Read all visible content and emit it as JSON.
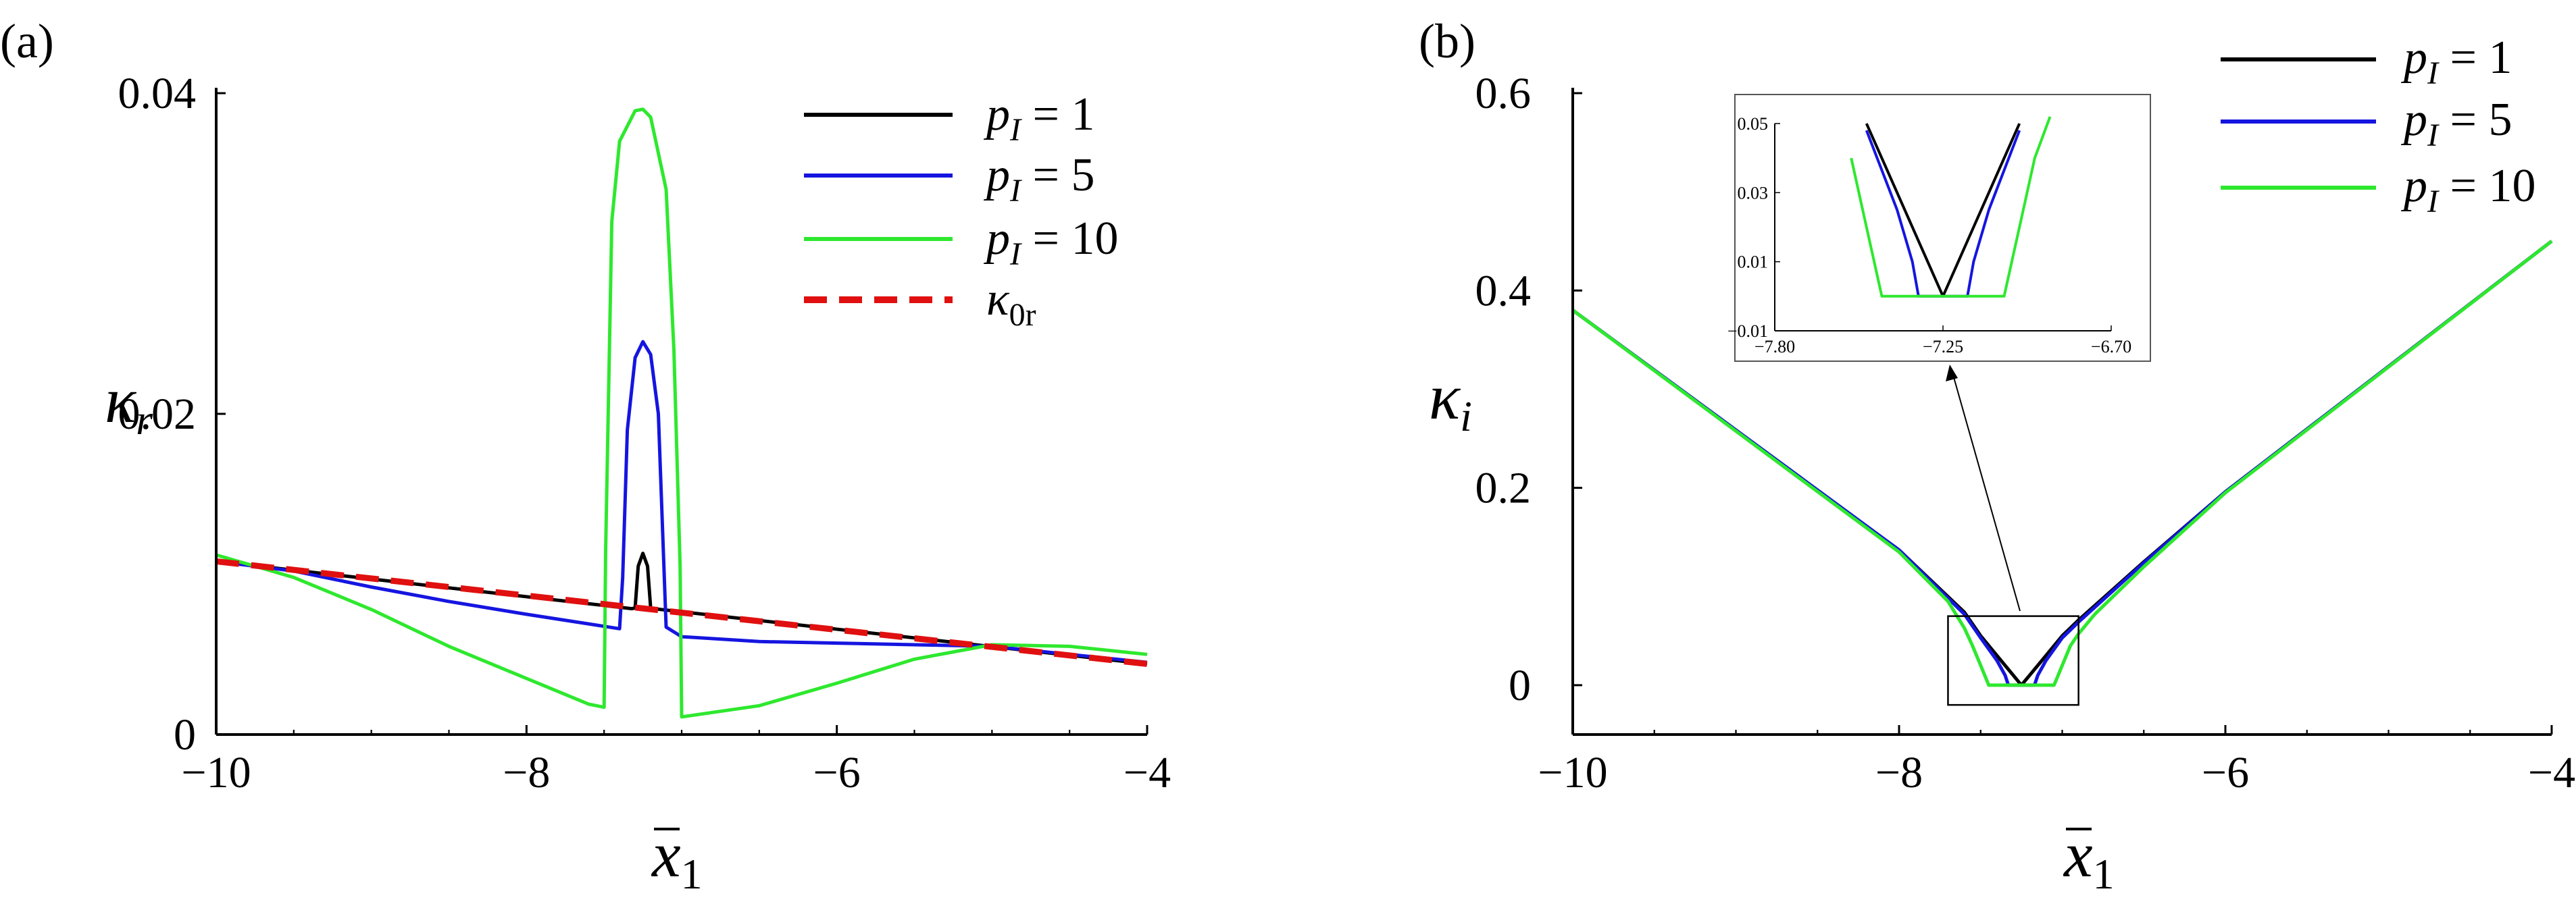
{
  "panels": [
    {
      "id": "a",
      "panel_label": "(a)",
      "xlabel_base": "x",
      "xlabel_sub": "1",
      "ylabel_base": "κ",
      "ylabel_sub": "r",
      "legend": [
        {
          "base": "p",
          "sub": "I",
          "rest": " = 1"
        },
        {
          "base": "p",
          "sub": "I",
          "rest": " = 5"
        },
        {
          "base": "p",
          "sub": "I",
          "rest": " = 10"
        },
        {
          "base": "κ",
          "sub": "0r",
          "rest": ""
        }
      ]
    },
    {
      "id": "b",
      "panel_label": "(b)",
      "xlabel_base": "x",
      "xlabel_sub": "1",
      "ylabel_base": "κ",
      "ylabel_sub": "i",
      "legend": [
        {
          "base": "p",
          "sub": "I",
          "rest": " = 1"
        },
        {
          "base": "p",
          "sub": "I",
          "rest": " = 5"
        },
        {
          "base": "p",
          "sub": "I",
          "rest": " = 10"
        }
      ]
    }
  ],
  "colors": {
    "pI_1": "#000000",
    "pI_5": "#1515e0",
    "pI_10": "#2ee82e",
    "kappa0r": "#e01010",
    "axis": "#000000"
  },
  "chart_data": [
    {
      "type": "line",
      "panel": "a",
      "xlim": [
        -10,
        -4
      ],
      "ylim": [
        0,
        0.04
      ],
      "xticks": [
        -10,
        -8,
        -6,
        -4
      ],
      "xtick_labels": [
        "−10",
        "−8",
        "−6",
        "−4"
      ],
      "yticks": [
        0,
        0.02,
        0.04
      ],
      "ytick_labels": [
        "0",
        "0.02",
        "0.04"
      ],
      "series": [
        {
          "key": "pI_1",
          "x": [
            -10,
            -7.32,
            -7.3,
            -7.28,
            -7.25,
            -7.22,
            -7.2,
            -7.18,
            -4
          ],
          "y": [
            0.0108,
            0.00785,
            0.0079,
            0.0105,
            0.0113,
            0.0105,
            0.0079,
            0.00785,
            0.0044
          ]
        },
        {
          "key": "pI_5",
          "x": [
            -10,
            -9.5,
            -9,
            -8.5,
            -8,
            -7.6,
            -7.4,
            -7.38,
            -7.35,
            -7.3,
            -7.25,
            -7.2,
            -7.15,
            -7.12,
            -7.1,
            -7.0,
            -6.5,
            -6.0,
            -5.5,
            -5.0,
            -4.5,
            -4
          ],
          "y": [
            0.0108,
            0.0102,
            0.0092,
            0.0083,
            0.0075,
            0.0069,
            0.0066,
            0.0098,
            0.019,
            0.0235,
            0.0245,
            0.0237,
            0.02,
            0.012,
            0.0067,
            0.0061,
            0.0058,
            0.0057,
            0.0056,
            0.0055,
            0.005,
            0.0045
          ]
        },
        {
          "key": "pI_10",
          "x": [
            -10,
            -9.5,
            -9,
            -8.5,
            -8,
            -7.6,
            -7.5,
            -7.49,
            -7.45,
            -7.4,
            -7.3,
            -7.25,
            -7.2,
            -7.1,
            -7.05,
            -7.01,
            -7.0,
            -6.5,
            -6.0,
            -5.5,
            -5.0,
            -4.5,
            -4
          ],
          "y": [
            0.0112,
            0.0098,
            0.0078,
            0.0055,
            0.0035,
            0.0019,
            0.0017,
            0.0115,
            0.032,
            0.037,
            0.0389,
            0.039,
            0.0385,
            0.034,
            0.024,
            0.0105,
            0.0011,
            0.0018,
            0.0032,
            0.0047,
            0.0056,
            0.0055,
            0.005
          ]
        },
        {
          "key": "kappa0r",
          "x": [
            -10,
            -4
          ],
          "y": [
            0.0108,
            0.0044
          ]
        }
      ]
    },
    {
      "type": "line",
      "panel": "b",
      "xlim": [
        -10,
        -4
      ],
      "ylim": [
        -0.05,
        0.6
      ],
      "xticks": [
        -10,
        -8,
        -6,
        -4
      ],
      "xtick_labels": [
        "−10",
        "−8",
        "−6",
        "−4"
      ],
      "yticks": [
        0,
        0.2,
        0.4,
        0.6
      ],
      "ytick_labels": [
        "0",
        "0.2",
        "0.4",
        "0.6"
      ],
      "series": [
        {
          "key": "pI_1",
          "x": [
            -10,
            -8,
            -7.6,
            -7.5,
            -7.4,
            -7.3,
            -7.25,
            -7.2,
            -7.1,
            -7.0,
            -6.9,
            -6.5,
            -6,
            -4
          ],
          "y": [
            0.38,
            0.137,
            0.074,
            0.05,
            0.03,
            0.01,
            0.0,
            0.01,
            0.03,
            0.05,
            0.066,
            0.125,
            0.196,
            0.45
          ]
        },
        {
          "key": "pI_5",
          "x": [
            -10,
            -8,
            -7.6,
            -7.5,
            -7.4,
            -7.35,
            -7.33,
            -7.17,
            -7.15,
            -7.1,
            -7.0,
            -6.9,
            -6.5,
            -6,
            -4
          ],
          "y": [
            0.38,
            0.137,
            0.072,
            0.048,
            0.025,
            0.01,
            0.0,
            0.0,
            0.01,
            0.025,
            0.048,
            0.064,
            0.124,
            0.196,
            0.45
          ]
        },
        {
          "key": "pI_10",
          "x": [
            -10,
            -8,
            -7.7,
            -7.6,
            -7.55,
            -7.5,
            -7.45,
            -7.05,
            -7.0,
            -6.95,
            -6.9,
            -6.8,
            -6.5,
            -6,
            -4
          ],
          "y": [
            0.38,
            0.135,
            0.085,
            0.058,
            0.04,
            0.02,
            0.0,
            0.0,
            0.02,
            0.04,
            0.052,
            0.072,
            0.12,
            0.195,
            0.45
          ]
        }
      ],
      "inset": {
        "xlim": [
          -7.8,
          -6.7
        ],
        "ylim": [
          -0.01,
          0.05
        ],
        "xticks": [
          -7.8,
          -7.25,
          -6.7
        ],
        "xtick_labels": [
          "−7.80",
          "−7.25",
          "−6.70"
        ],
        "yticks": [
          -0.01,
          0.01,
          0.03,
          0.05
        ],
        "ytick_labels": [
          "−0.01",
          "0.01",
          "0.03",
          "0.05"
        ]
      }
    }
  ]
}
